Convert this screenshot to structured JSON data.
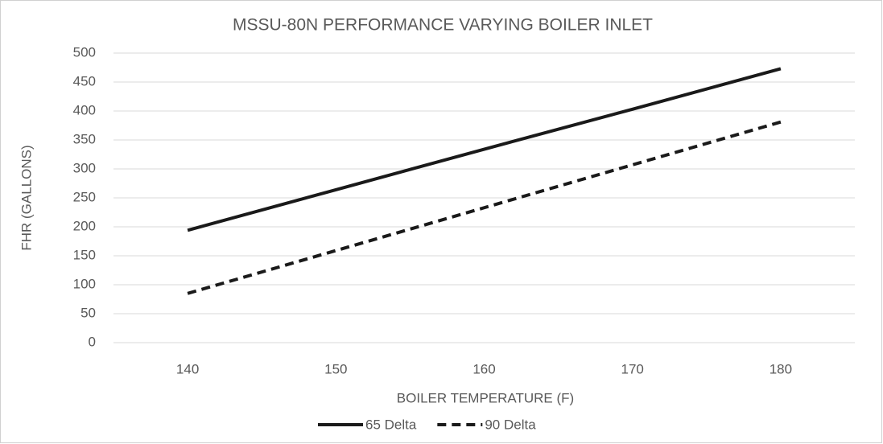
{
  "chart_data": {
    "type": "line",
    "title": "MSSU-80N PERFORMANCE VARYING BOILER INLET",
    "x_label": "BOILER TEMPERATURE (F)",
    "y_label": "FHR (GALLONS)",
    "x": [
      140,
      150,
      160,
      170,
      180
    ],
    "series": [
      {
        "name": "65 Delta",
        "color": "#1a1a1a",
        "dash": "solid",
        "values": [
          194,
          264,
          334,
          403,
          473
        ]
      },
      {
        "name": "90 Delta",
        "color": "#1a1a1a",
        "dash": "dashed",
        "values": [
          85,
          159,
          233,
          307,
          381
        ]
      }
    ],
    "xlim": [
      135,
      185
    ],
    "xticks": [
      140,
      150,
      160,
      170,
      180
    ],
    "ylim": [
      0,
      500
    ],
    "yticks": [
      0,
      50,
      100,
      150,
      200,
      250,
      300,
      350,
      400,
      450,
      500
    ],
    "grid": true,
    "legend": "bottom"
  }
}
